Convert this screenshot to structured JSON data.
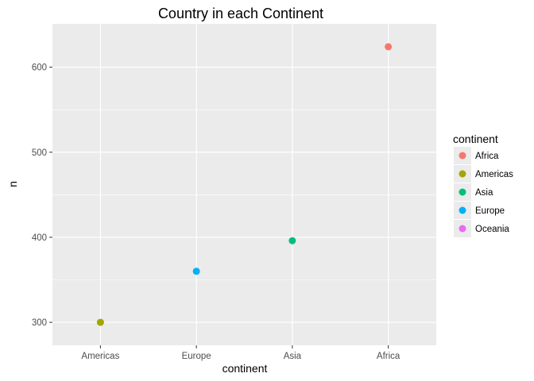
{
  "chart_data": {
    "type": "scatter",
    "title": "Country in each Continent",
    "xlabel": "continent",
    "ylabel": "n",
    "categories": [
      "Americas",
      "Europe",
      "Asia",
      "Africa"
    ],
    "points": [
      {
        "x": "Americas",
        "y": 300,
        "group": "Americas"
      },
      {
        "x": "Europe",
        "y": 360,
        "group": "Europe"
      },
      {
        "x": "Asia",
        "y": 396,
        "group": "Asia"
      },
      {
        "x": "Africa",
        "y": 624,
        "group": "Africa"
      }
    ],
    "yticks": [
      300,
      400,
      500,
      600
    ],
    "ylim": [
      273,
      651
    ],
    "grid": true,
    "legend": {
      "title": "continent",
      "position": "right",
      "entries": [
        {
          "label": "Africa",
          "color": "#F8766D"
        },
        {
          "label": "Americas",
          "color": "#A3A500"
        },
        {
          "label": "Asia",
          "color": "#00BF7D"
        },
        {
          "label": "Europe",
          "color": "#00B0F6"
        },
        {
          "label": "Oceania",
          "color": "#E76BF3"
        }
      ]
    },
    "colors": {
      "panel_background": "#EBEBEB",
      "grid_major": "#FFFFFF"
    }
  }
}
